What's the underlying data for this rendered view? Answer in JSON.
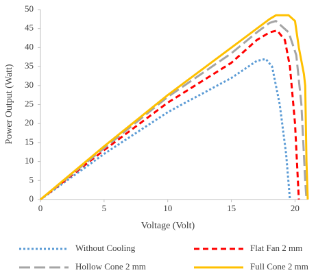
{
  "chart_data": {
    "type": "line",
    "xlabel": "Voltage (Volt)",
    "ylabel": "Power Output (Watt)",
    "xlim": [
      0,
      21
    ],
    "xticks": [
      0,
      5,
      10,
      15,
      20
    ],
    "ylim": [
      0,
      50
    ],
    "yticks": [
      0,
      5,
      10,
      15,
      20,
      25,
      30,
      35,
      40,
      45,
      50
    ],
    "grid": false,
    "legend": "bottom",
    "series": [
      {
        "name": "Without Cooling",
        "color": "#5b9bd5",
        "dash": "dotted",
        "x": [
          0,
          5,
          10,
          15,
          17,
          17.7,
          18.2,
          18.8,
          19.3,
          19.6
        ],
        "values": [
          0,
          12,
          23,
          32,
          36.5,
          37,
          35,
          25,
          12,
          0
        ]
      },
      {
        "name": "Flat Fan 2 mm",
        "color": "#ff0000",
        "dash": "dashed",
        "x": [
          0,
          5,
          10,
          15,
          17,
          18,
          18.6,
          19.2,
          19.6,
          20,
          20.3
        ],
        "values": [
          0,
          13,
          25.5,
          36,
          42,
          44,
          44.5,
          42,
          35,
          20,
          0
        ]
      },
      {
        "name": "Hollow Cone 2 mm",
        "color": "#a5a5a5",
        "dash": "longdash",
        "x": [
          0,
          5,
          10,
          15,
          17,
          18,
          18.5,
          19.5,
          20.1,
          20.5,
          20.8,
          20.9
        ],
        "values": [
          0,
          13.5,
          27,
          38.5,
          44,
          46.5,
          47,
          44,
          38,
          25,
          5,
          0
        ]
      },
      {
        "name": "Full Cone 2 mm",
        "color": "#ffc000",
        "dash": "solid",
        "x": [
          0,
          5,
          10,
          15,
          17,
          18,
          18.5,
          19.5,
          20,
          20.3,
          20.7,
          20.8,
          20.9,
          21
        ],
        "values": [
          0,
          14,
          27.5,
          40,
          45,
          47.5,
          48.5,
          48.5,
          47,
          40,
          33,
          30,
          10,
          0
        ]
      }
    ]
  }
}
